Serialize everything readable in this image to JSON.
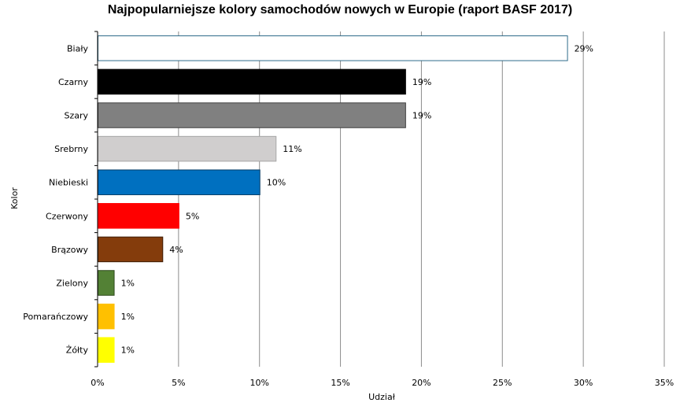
{
  "chart_data": {
    "type": "bar",
    "orientation": "horizontal",
    "title": "Najpopularniejsze kolory samochodów nowych w Europie (raport BASF 2017)",
    "xlabel": "Udział",
    "ylabel": "Kolor",
    "xlim": [
      0,
      35
    ],
    "x_ticks": [
      "0%",
      "5%",
      "10%",
      "15%",
      "20%",
      "25%",
      "30%",
      "35%"
    ],
    "grid": "vertical",
    "categories": [
      "Biały",
      "Czarny",
      "Szary",
      "Srebrny",
      "Niebieski",
      "Czerwony",
      "Brązowy",
      "Zielony",
      "Pomarańczowy",
      "Żółty"
    ],
    "values": [
      29,
      19,
      19,
      11,
      10,
      5,
      4,
      1,
      1,
      1
    ],
    "value_labels": [
      "29%",
      "19%",
      "19%",
      "11%",
      "10%",
      "5%",
      "4%",
      "1%",
      "1%",
      "1%"
    ],
    "colors": [
      "#ffffff",
      "#000000",
      "#808080",
      "#d0cece",
      "#0070c0",
      "#ff0000",
      "#843c0c",
      "#538135",
      "#ffc000",
      "#ffff00"
    ],
    "outline_colors": [
      "#2e6b8a",
      "#000000",
      "#404040",
      "#a6a6a6",
      "#003b66",
      "#ff0000",
      "#3d1c06",
      "#2e4a1d",
      "#ffc000",
      "#ffff00"
    ]
  }
}
